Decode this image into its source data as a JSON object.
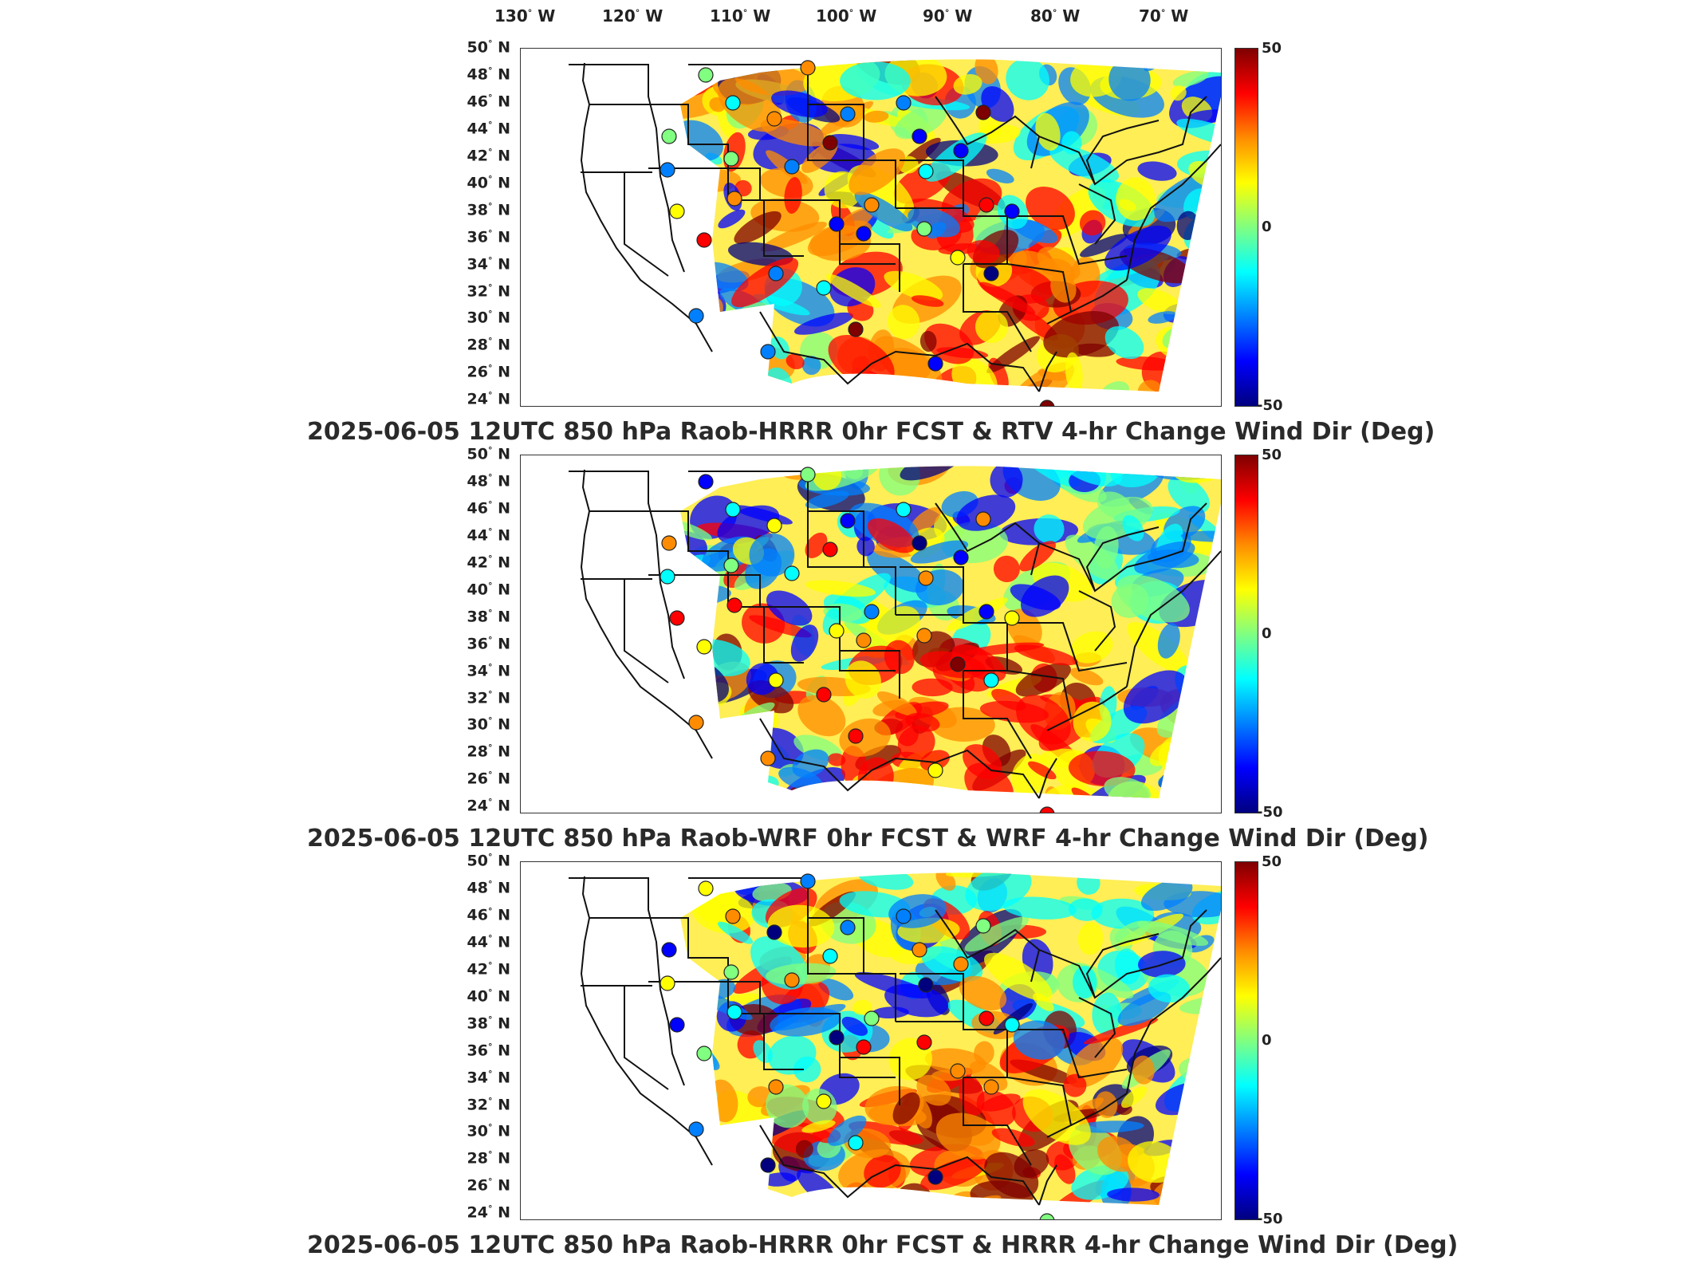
{
  "lon_labels": [
    "130",
    "120",
    "110",
    "100",
    "90",
    "80",
    "70"
  ],
  "lon_hemisphere": "W",
  "lat_labels": [
    "50",
    "48",
    "46",
    "44",
    "42",
    "40",
    "38",
    "36",
    "34",
    "32",
    "30",
    "28",
    "26",
    "24"
  ],
  "lat_hemisphere": "N",
  "colorbar": {
    "max_label": "50",
    "mid_label": "0",
    "min_label": "-50",
    "colors": [
      "#7f0000",
      "#ff0000",
      "#ff8c00",
      "#ffff00",
      "#80ff80",
      "#00ffff",
      "#0080ff",
      "#0000ff",
      "#00007f"
    ]
  },
  "panels": [
    {
      "title": "2025-06-05 12UTC 850 hPa Raob-HRRR 0hr FCST & RTV 4-hr Change Wind Dir (Deg)"
    },
    {
      "title": "2025-06-05 12UTC 850 hPa Raob-WRF 0hr FCST & WRF 4-hr Change Wind Dir (Deg)"
    },
    {
      "title": "2025-06-05 12UTC 850 hPa Raob-HRRR 0hr FCST & HRRR 4-hr Change Wind Dir (Deg)"
    }
  ]
}
